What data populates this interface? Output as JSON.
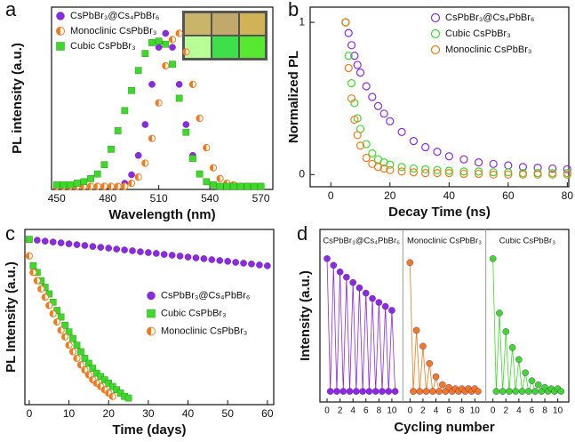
{
  "chart_data": [
    {
      "type": "scatter",
      "label": "a",
      "xlabel": "Wavelength (nm)",
      "ylabel": "PL intensity (a.u.)",
      "xlim": [
        447,
        577
      ],
      "ylim": [
        -0.01,
        1.17
      ],
      "xticks": [
        450,
        480,
        510,
        540,
        570
      ],
      "legend": "upper left",
      "series": [
        {
          "name": "CsPbBr₃@Cs₄PbBr₆",
          "color": "#8a2be2",
          "marker": "circle",
          "x": [
            450,
            454,
            458,
            462,
            466,
            470,
            474,
            478,
            482,
            486,
            490,
            494,
            498,
            502,
            506,
            510,
            514,
            518,
            522,
            526,
            530,
            534,
            538,
            542,
            546,
            550,
            554,
            558,
            562,
            566,
            570
          ],
          "values": [
            0.01,
            0.01,
            0.01,
            0.01,
            0.01,
            0.01,
            0.01,
            0.01,
            0.01,
            0.01,
            0.03,
            0.085,
            0.21,
            0.41,
            0.67,
            0.91,
            1.0,
            0.91,
            0.67,
            0.41,
            0.21,
            0.09,
            0.04,
            0.02,
            0.01,
            0.01,
            0.01,
            0.01,
            0.01,
            0.01,
            0.01
          ]
        },
        {
          "name": "Monoclinic CsPbBr₃",
          "color": "#f07b1f",
          "marker": "half",
          "x": [
            450,
            454,
            458,
            462,
            466,
            470,
            474,
            478,
            482,
            486,
            490,
            494,
            498,
            502,
            506,
            510,
            514,
            518,
            522,
            526,
            530,
            534,
            538,
            542,
            546,
            550,
            554,
            558,
            562,
            566,
            570
          ],
          "values": [
            0.01,
            0.01,
            0.01,
            0.01,
            0.01,
            0.01,
            0.01,
            0.01,
            0.01,
            0.01,
            0.01,
            0.03,
            0.07,
            0.16,
            0.32,
            0.55,
            0.79,
            0.96,
            1.0,
            0.88,
            0.67,
            0.45,
            0.26,
            0.13,
            0.06,
            0.03,
            0.02,
            0.01,
            0.01,
            0.01,
            0.01
          ]
        },
        {
          "name": "Cubic CsPbBr₃",
          "color": "#3fd92b",
          "marker": "square",
          "x": [
            450,
            454,
            458,
            462,
            466,
            470,
            474,
            478,
            482,
            486,
            490,
            494,
            498,
            502,
            506,
            510,
            514,
            518,
            522,
            526,
            530,
            534,
            538,
            542,
            546,
            550,
            554,
            558,
            562,
            566,
            570
          ],
          "values": [
            0.02,
            0.02,
            0.02,
            0.03,
            0.04,
            0.06,
            0.09,
            0.15,
            0.25,
            0.37,
            0.5,
            0.63,
            0.76,
            0.87,
            0.94,
            0.95,
            0.93,
            0.8,
            0.58,
            0.36,
            0.19,
            0.09,
            0.04,
            0.02,
            0.01,
            0.01,
            0.01,
            0.01,
            0.01,
            0.01,
            0.01
          ]
        }
      ]
    },
    {
      "type": "scatter",
      "label": "b",
      "xlabel": "Decay Time (ns)",
      "ylabel": "Normalized PL",
      "xlim": [
        -7,
        80.5
      ],
      "ylim": [
        -0.08,
        1.1
      ],
      "xticks": [
        0,
        20,
        40,
        60,
        80
      ],
      "yticks": [
        0,
        1
      ],
      "legend": "upper right",
      "series": [
        {
          "name": "CsPbBr₃@Cs₄PbBr₆",
          "color": "#8a2be2",
          "marker": "open",
          "x": [
            5,
            6,
            7,
            8,
            9,
            10,
            12,
            14,
            16,
            18,
            20,
            24,
            28,
            32,
            36,
            40,
            45,
            50,
            55,
            60,
            65,
            70,
            75,
            80
          ],
          "values": [
            1,
            0.93,
            0.85,
            0.78,
            0.72,
            0.67,
            0.58,
            0.51,
            0.45,
            0.4,
            0.35,
            0.28,
            0.22,
            0.18,
            0.15,
            0.12,
            0.1,
            0.08,
            0.07,
            0.06,
            0.05,
            0.045,
            0.04,
            0.035
          ]
        },
        {
          "name": "Cubic CsPbBr₃",
          "color": "#3fd92b",
          "marker": "open",
          "x": [
            5,
            6,
            7,
            8,
            9,
            10,
            12,
            14,
            16,
            18,
            20,
            24,
            28,
            32,
            36,
            40,
            45,
            50,
            55,
            60,
            65,
            70,
            75,
            80
          ],
          "values": [
            1,
            0.78,
            0.6,
            0.47,
            0.37,
            0.3,
            0.2,
            0.14,
            0.1,
            0.08,
            0.065,
            0.05,
            0.04,
            0.035,
            0.03,
            0.025,
            0.02,
            0.02,
            0.015,
            0.015,
            0.01,
            0.01,
            0.01,
            0.01
          ]
        },
        {
          "name": "Monoclinic CsPbBr₃",
          "color": "#f07b1f",
          "marker": "open",
          "x": [
            5,
            6,
            7,
            8,
            9,
            10,
            12,
            14,
            16,
            18,
            20,
            24,
            28,
            32,
            36,
            40,
            45,
            50,
            55,
            60,
            65,
            70,
            75,
            80
          ],
          "values": [
            1,
            0.7,
            0.5,
            0.36,
            0.26,
            0.19,
            0.11,
            0.07,
            0.05,
            0.04,
            0.03,
            0.02,
            0.015,
            0.01,
            0.01,
            0.01,
            0.005,
            0.005,
            0,
            0,
            0,
            0,
            0,
            0
          ]
        }
      ]
    },
    {
      "type": "scatter",
      "label": "c",
      "xlabel": "Time (days)",
      "ylabel": "PL Intensity (a.u.)",
      "xlim": [
        -1.1,
        61.6
      ],
      "ylim": [
        0,
        1.06
      ],
      "xticks": [
        0,
        10,
        20,
        30,
        40,
        50,
        60
      ],
      "legend": "center right",
      "series": [
        {
          "name": "CsPbBr₃@Cs₄PbBr₆",
          "color": "#8a2be2",
          "marker": "circle",
          "x": [
            0,
            2,
            4,
            6,
            8,
            10,
            12,
            14,
            16,
            18,
            20,
            22,
            24,
            26,
            28,
            30,
            32,
            34,
            36,
            38,
            40,
            42,
            44,
            46,
            48,
            50,
            52,
            54,
            56,
            58,
            60
          ],
          "values": [
            1.0,
            0.995,
            0.989,
            0.984,
            0.979,
            0.973,
            0.968,
            0.963,
            0.957,
            0.952,
            0.947,
            0.941,
            0.936,
            0.931,
            0.925,
            0.92,
            0.915,
            0.909,
            0.904,
            0.899,
            0.893,
            0.888,
            0.883,
            0.877,
            0.872,
            0.867,
            0.861,
            0.856,
            0.851,
            0.845,
            0.84
          ]
        },
        {
          "name": "Cubic CsPbBr₃",
          "color": "#3fd92b",
          "marker": "square",
          "x": [
            0,
            1,
            2,
            3,
            4,
            5,
            6,
            7,
            8,
            9,
            10,
            11,
            12,
            13,
            14,
            15,
            16,
            17,
            18,
            19,
            20,
            21,
            22,
            23,
            24,
            25
          ],
          "values": [
            1.0,
            0.84,
            0.8,
            0.75,
            0.71,
            0.67,
            0.62,
            0.57,
            0.53,
            0.48,
            0.44,
            0.4,
            0.36,
            0.32,
            0.28,
            0.25,
            0.22,
            0.19,
            0.17,
            0.15,
            0.13,
            0.11,
            0.09,
            0.07,
            0.05,
            0.04
          ]
        },
        {
          "name": "Monoclinic CsPbBr₃",
          "color": "#f07b1f",
          "marker": "half",
          "x": [
            0,
            1,
            2,
            3,
            4,
            5,
            6,
            7,
            8,
            9,
            10,
            11,
            12,
            13,
            14,
            15,
            16,
            17,
            18,
            19,
            20,
            21
          ],
          "values": [
            0.9,
            0.8,
            0.75,
            0.7,
            0.65,
            0.6,
            0.55,
            0.5,
            0.45,
            0.41,
            0.36,
            0.32,
            0.28,
            0.24,
            0.21,
            0.18,
            0.15,
            0.13,
            0.11,
            0.09,
            0.07,
            0.05
          ]
        }
      ]
    },
    {
      "type": "cycling",
      "label": "d",
      "xlabel": "Cycling number",
      "ylabel": "Intensity (a.u.)",
      "xlim": [
        -1.1,
        11.7
      ],
      "ylim": [
        -0.08,
        1.22
      ],
      "xticks": [
        0,
        2,
        4,
        6,
        8,
        10
      ],
      "series": [
        {
          "name": "CsPbBr₃@Cs₄PbBr₆",
          "color": "#8a2be2",
          "x": [
            0,
            0.5,
            1,
            1.5,
            2,
            2.5,
            3,
            3.5,
            4,
            4.5,
            5,
            5.5,
            6,
            6.5,
            7,
            7.5,
            8,
            8.5,
            9,
            9.5,
            10,
            10.5
          ],
          "values": [
            1.0,
            0,
            0.95,
            0,
            0.9,
            0,
            0.86,
            0,
            0.82,
            0,
            0.78,
            0,
            0.74,
            0,
            0.7,
            0,
            0.67,
            0,
            0.64,
            0,
            0.61,
            0
          ]
        },
        {
          "name": "Monoclinic CsPbBr₃",
          "color": "#f07b1f",
          "x": [
            0,
            0.5,
            1,
            1.5,
            2,
            2.5,
            3,
            3.5,
            4,
            4.5,
            5,
            5.5,
            6,
            6.5,
            7,
            7.5,
            8,
            8.5,
            9,
            9.5,
            10,
            10.5
          ],
          "values": [
            0.97,
            0,
            0.46,
            0,
            0.34,
            0,
            0.21,
            0,
            0.11,
            0,
            0.05,
            0,
            0.03,
            0,
            0.02,
            0,
            0.02,
            0,
            0.02,
            0,
            0.02,
            0
          ]
        },
        {
          "name": "Cubic CsPbBr₃",
          "color": "#3fd92b",
          "x": [
            0,
            0.5,
            1,
            1.5,
            2,
            2.5,
            3,
            3.5,
            4,
            4.5,
            5,
            5.5,
            6,
            6.5,
            7,
            7.5,
            8,
            8.5,
            9,
            9.5,
            10,
            10.5
          ],
          "values": [
            1.0,
            0,
            0.59,
            0,
            0.45,
            0,
            0.33,
            0,
            0.24,
            0,
            0.14,
            0,
            0.08,
            0,
            0.05,
            0,
            0.03,
            0,
            0.02,
            0,
            0.02,
            0
          ]
        }
      ]
    }
  ]
}
